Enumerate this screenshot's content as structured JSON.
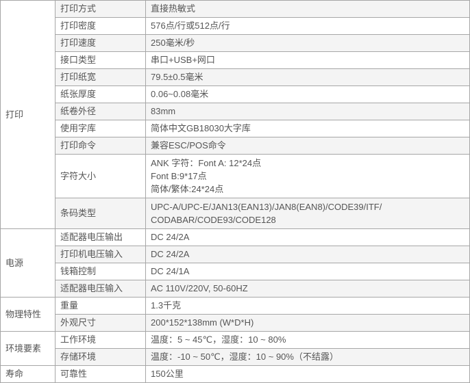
{
  "table": {
    "colors": {
      "border": "#a6a6a6",
      "row_alt_bg": "#f4f4f4",
      "text": "#555555",
      "row_bg": "#ffffff"
    },
    "columns": {
      "category_width": 80,
      "label_width": 132
    },
    "groups": [
      {
        "category": "打印",
        "rows": [
          {
            "label": "打印方式",
            "value": "直接热敏式"
          },
          {
            "label": "打印密度",
            "value": "576点/行或512点/行"
          },
          {
            "label": "打印速度",
            "value": "250毫米/秒"
          },
          {
            "label": "接口类型",
            "value": "串口+USB+网口"
          },
          {
            "label": "打印纸宽",
            "value": "79.5±0.5毫米"
          },
          {
            "label": "纸张厚度",
            "value": "0.06~0.08毫米"
          },
          {
            "label": "纸卷外径",
            "value": "83mm"
          },
          {
            "label": "使用字库",
            "value": "简体中文GB18030大字库"
          },
          {
            "label": "打印命令",
            "value": "兼容ESC/POS命令"
          },
          {
            "label": "字符大小",
            "value_lines": [
              "ANK 字符：Font A: 12*24点",
              "Font B:9*17点",
              "简体/繁体:24*24点"
            ]
          },
          {
            "label": "条码类型",
            "value_lines": [
              "UPC-A/UPC-E/JAN13(EAN13)/JAN8(EAN8)/CODE39/ITF/",
              "CODABAR/CODE93/CODE128"
            ]
          }
        ]
      },
      {
        "category": "电源",
        "rows": [
          {
            "label": "适配器电压输出",
            "value": "DC 24/2A"
          },
          {
            "label": "打印机电压输入",
            "value": "DC 24/2A"
          },
          {
            "label": "钱箱控制",
            "value": "DC 24/1A"
          },
          {
            "label": "适配器电压输入",
            "value": "AC 110V/220V, 50-60HZ"
          }
        ]
      },
      {
        "category": "物理特性",
        "rows": [
          {
            "label": "重量",
            "value": "1.3千克"
          },
          {
            "label": "外观尺寸",
            "value": "200*152*138mm (W*D*H)"
          }
        ]
      },
      {
        "category": "环境要素",
        "rows": [
          {
            "label": "工作环境",
            "value": "温度：5 ~ 45℃，湿度：10 ~ 80%"
          },
          {
            "label": "存储环境",
            "value": "温度：-10 ~ 50℃，湿度：10 ~ 90%（不结露）"
          }
        ]
      },
      {
        "category": "寿命",
        "rows": [
          {
            "label": "可靠性",
            "value": "150公里"
          }
        ]
      }
    ]
  }
}
